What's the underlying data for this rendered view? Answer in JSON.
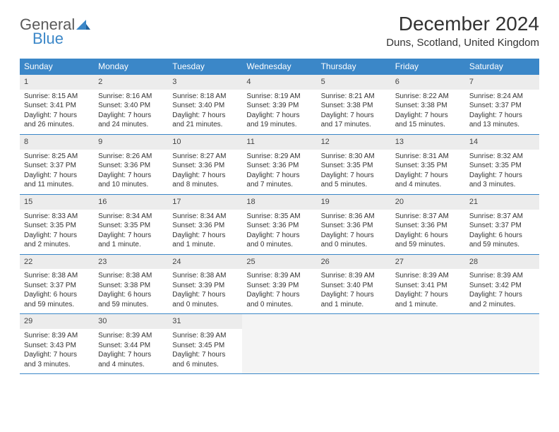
{
  "logo": {
    "general": "General",
    "blue": "Blue"
  },
  "title": "December 2024",
  "location": "Duns, Scotland, United Kingdom",
  "columns": [
    "Sunday",
    "Monday",
    "Tuesday",
    "Wednesday",
    "Thursday",
    "Friday",
    "Saturday"
  ],
  "colors": {
    "header_bg": "#3b87c8",
    "header_text": "#ffffff",
    "daynum_bg": "#ececec",
    "border": "#3b87c8",
    "logo_gray": "#5a5a5a",
    "logo_blue": "#3b87c8",
    "body_text": "#333333"
  },
  "days": [
    {
      "n": "1",
      "sunrise": "Sunrise: 8:15 AM",
      "sunset": "Sunset: 3:41 PM",
      "daylight": "Daylight: 7 hours and 26 minutes."
    },
    {
      "n": "2",
      "sunrise": "Sunrise: 8:16 AM",
      "sunset": "Sunset: 3:40 PM",
      "daylight": "Daylight: 7 hours and 24 minutes."
    },
    {
      "n": "3",
      "sunrise": "Sunrise: 8:18 AM",
      "sunset": "Sunset: 3:40 PM",
      "daylight": "Daylight: 7 hours and 21 minutes."
    },
    {
      "n": "4",
      "sunrise": "Sunrise: 8:19 AM",
      "sunset": "Sunset: 3:39 PM",
      "daylight": "Daylight: 7 hours and 19 minutes."
    },
    {
      "n": "5",
      "sunrise": "Sunrise: 8:21 AM",
      "sunset": "Sunset: 3:38 PM",
      "daylight": "Daylight: 7 hours and 17 minutes."
    },
    {
      "n": "6",
      "sunrise": "Sunrise: 8:22 AM",
      "sunset": "Sunset: 3:38 PM",
      "daylight": "Daylight: 7 hours and 15 minutes."
    },
    {
      "n": "7",
      "sunrise": "Sunrise: 8:24 AM",
      "sunset": "Sunset: 3:37 PM",
      "daylight": "Daylight: 7 hours and 13 minutes."
    },
    {
      "n": "8",
      "sunrise": "Sunrise: 8:25 AM",
      "sunset": "Sunset: 3:37 PM",
      "daylight": "Daylight: 7 hours and 11 minutes."
    },
    {
      "n": "9",
      "sunrise": "Sunrise: 8:26 AM",
      "sunset": "Sunset: 3:36 PM",
      "daylight": "Daylight: 7 hours and 10 minutes."
    },
    {
      "n": "10",
      "sunrise": "Sunrise: 8:27 AM",
      "sunset": "Sunset: 3:36 PM",
      "daylight": "Daylight: 7 hours and 8 minutes."
    },
    {
      "n": "11",
      "sunrise": "Sunrise: 8:29 AM",
      "sunset": "Sunset: 3:36 PM",
      "daylight": "Daylight: 7 hours and 7 minutes."
    },
    {
      "n": "12",
      "sunrise": "Sunrise: 8:30 AM",
      "sunset": "Sunset: 3:35 PM",
      "daylight": "Daylight: 7 hours and 5 minutes."
    },
    {
      "n": "13",
      "sunrise": "Sunrise: 8:31 AM",
      "sunset": "Sunset: 3:35 PM",
      "daylight": "Daylight: 7 hours and 4 minutes."
    },
    {
      "n": "14",
      "sunrise": "Sunrise: 8:32 AM",
      "sunset": "Sunset: 3:35 PM",
      "daylight": "Daylight: 7 hours and 3 minutes."
    },
    {
      "n": "15",
      "sunrise": "Sunrise: 8:33 AM",
      "sunset": "Sunset: 3:35 PM",
      "daylight": "Daylight: 7 hours and 2 minutes."
    },
    {
      "n": "16",
      "sunrise": "Sunrise: 8:34 AM",
      "sunset": "Sunset: 3:35 PM",
      "daylight": "Daylight: 7 hours and 1 minute."
    },
    {
      "n": "17",
      "sunrise": "Sunrise: 8:34 AM",
      "sunset": "Sunset: 3:36 PM",
      "daylight": "Daylight: 7 hours and 1 minute."
    },
    {
      "n": "18",
      "sunrise": "Sunrise: 8:35 AM",
      "sunset": "Sunset: 3:36 PM",
      "daylight": "Daylight: 7 hours and 0 minutes."
    },
    {
      "n": "19",
      "sunrise": "Sunrise: 8:36 AM",
      "sunset": "Sunset: 3:36 PM",
      "daylight": "Daylight: 7 hours and 0 minutes."
    },
    {
      "n": "20",
      "sunrise": "Sunrise: 8:37 AM",
      "sunset": "Sunset: 3:36 PM",
      "daylight": "Daylight: 6 hours and 59 minutes."
    },
    {
      "n": "21",
      "sunrise": "Sunrise: 8:37 AM",
      "sunset": "Sunset: 3:37 PM",
      "daylight": "Daylight: 6 hours and 59 minutes."
    },
    {
      "n": "22",
      "sunrise": "Sunrise: 8:38 AM",
      "sunset": "Sunset: 3:37 PM",
      "daylight": "Daylight: 6 hours and 59 minutes."
    },
    {
      "n": "23",
      "sunrise": "Sunrise: 8:38 AM",
      "sunset": "Sunset: 3:38 PM",
      "daylight": "Daylight: 6 hours and 59 minutes."
    },
    {
      "n": "24",
      "sunrise": "Sunrise: 8:38 AM",
      "sunset": "Sunset: 3:39 PM",
      "daylight": "Daylight: 7 hours and 0 minutes."
    },
    {
      "n": "25",
      "sunrise": "Sunrise: 8:39 AM",
      "sunset": "Sunset: 3:39 PM",
      "daylight": "Daylight: 7 hours and 0 minutes."
    },
    {
      "n": "26",
      "sunrise": "Sunrise: 8:39 AM",
      "sunset": "Sunset: 3:40 PM",
      "daylight": "Daylight: 7 hours and 1 minute."
    },
    {
      "n": "27",
      "sunrise": "Sunrise: 8:39 AM",
      "sunset": "Sunset: 3:41 PM",
      "daylight": "Daylight: 7 hours and 1 minute."
    },
    {
      "n": "28",
      "sunrise": "Sunrise: 8:39 AM",
      "sunset": "Sunset: 3:42 PM",
      "daylight": "Daylight: 7 hours and 2 minutes."
    },
    {
      "n": "29",
      "sunrise": "Sunrise: 8:39 AM",
      "sunset": "Sunset: 3:43 PM",
      "daylight": "Daylight: 7 hours and 3 minutes."
    },
    {
      "n": "30",
      "sunrise": "Sunrise: 8:39 AM",
      "sunset": "Sunset: 3:44 PM",
      "daylight": "Daylight: 7 hours and 4 minutes."
    },
    {
      "n": "31",
      "sunrise": "Sunrise: 8:39 AM",
      "sunset": "Sunset: 3:45 PM",
      "daylight": "Daylight: 7 hours and 6 minutes."
    }
  ]
}
